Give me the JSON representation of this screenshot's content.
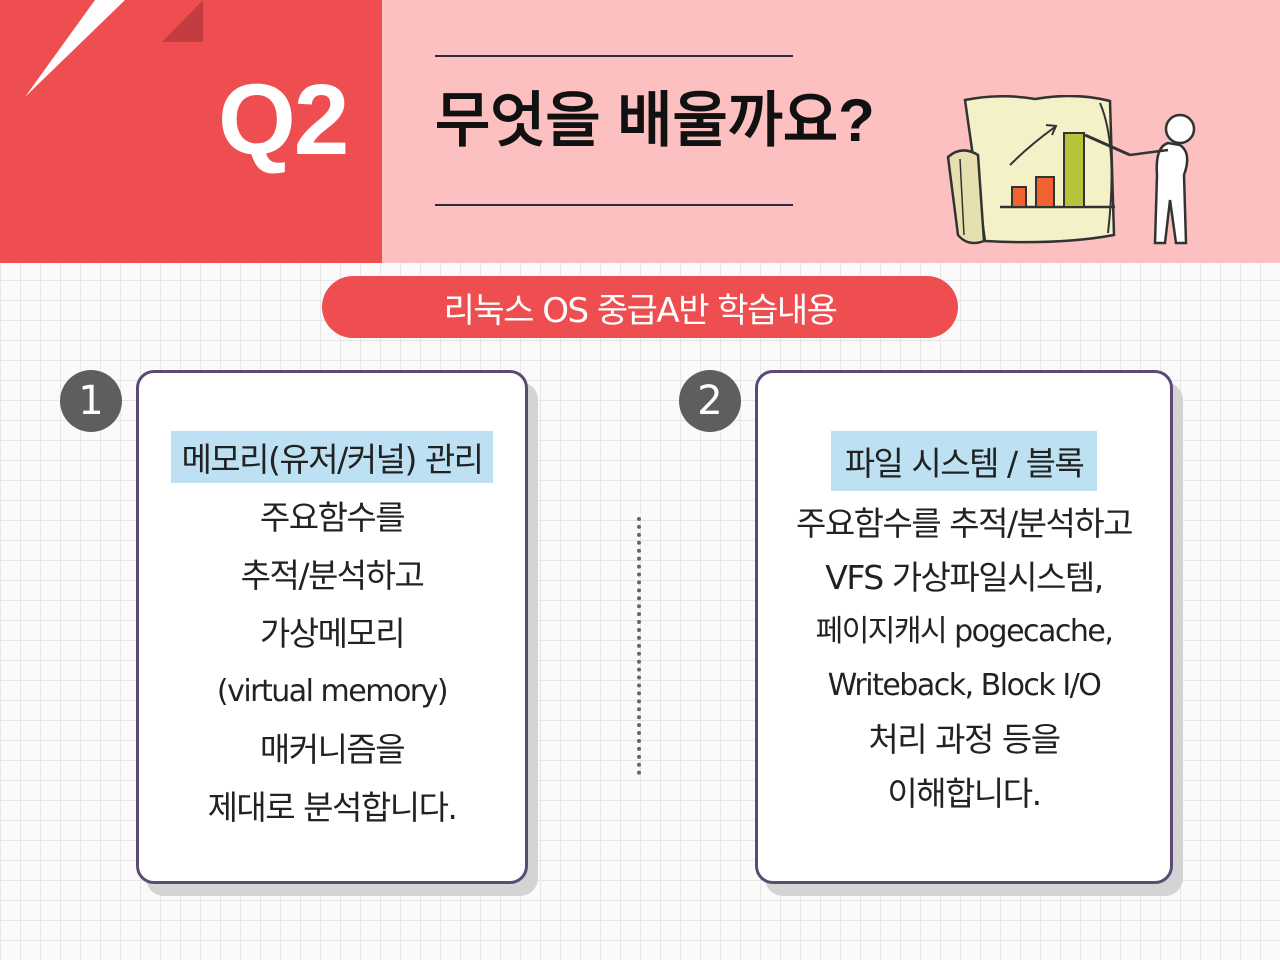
{
  "header": {
    "q_label": "Q2",
    "title": "무엇을 배울까요?",
    "illustration_icon": "presentation-chart-icon"
  },
  "colors": {
    "accent_red": "#ef4e51",
    "header_pink": "#fcc0c0",
    "highlight_blue": "#bde1f2",
    "card_border": "#5b4a73"
  },
  "pill": {
    "label": "리눅스 OS 중급A반 학습내용"
  },
  "cards": [
    {
      "number": "1",
      "heading": "메모리(유저/커널) 관리",
      "lines": [
        "주요함수를",
        "추적/분석하고",
        "가상메모리",
        "(virtual memory)",
        "매커니즘을",
        "제대로 분석합니다."
      ]
    },
    {
      "number": "2",
      "heading": "파일 시스템 /  블록",
      "lines": [
        "주요함수를 추적/분석하고",
        "VFS 가상파일시스템,",
        "페이지캐시 pogecache,",
        "Writeback, Block I/O",
        "처리 과정 등을",
        "이해합니다."
      ]
    }
  ]
}
